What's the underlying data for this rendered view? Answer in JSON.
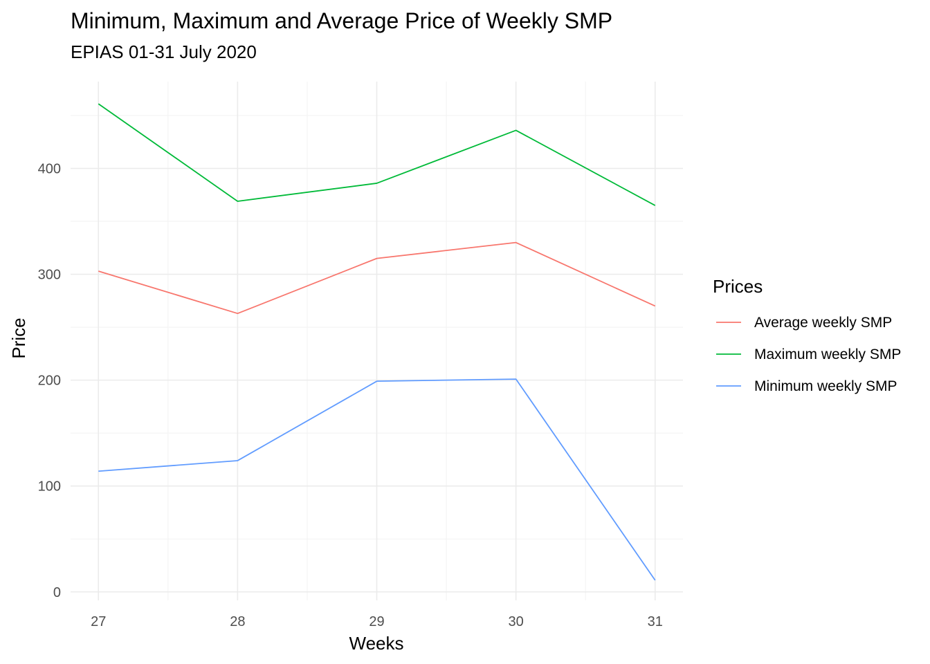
{
  "chart_data": {
    "type": "line",
    "title": "Minimum, Maximum and Average Price of Weekly SMP",
    "subtitle": "EPIAS 01-31 July 2020",
    "xlabel": "Weeks",
    "ylabel": "Price",
    "x": [
      27,
      28,
      29,
      30,
      31
    ],
    "x_ticks": [
      "27",
      "28",
      "29",
      "30",
      "31"
    ],
    "y_ticks": [
      "0",
      "100",
      "200",
      "300",
      "400"
    ],
    "xlim": [
      26.8,
      31.2
    ],
    "ylim": [
      -8,
      482
    ],
    "grid": true,
    "legend_position": "right",
    "legend_title": "Prices",
    "series": [
      {
        "name": "Average weekly SMP",
        "color": "#F8766D",
        "values": [
          303,
          263,
          315,
          330,
          270
        ]
      },
      {
        "name": "Maximum weekly SMP",
        "color": "#00BA38",
        "values": [
          461,
          369,
          386,
          436,
          365
        ]
      },
      {
        "name": "Minimum weekly SMP",
        "color": "#619CFF",
        "values": [
          114,
          124,
          199,
          201,
          11
        ]
      }
    ]
  }
}
